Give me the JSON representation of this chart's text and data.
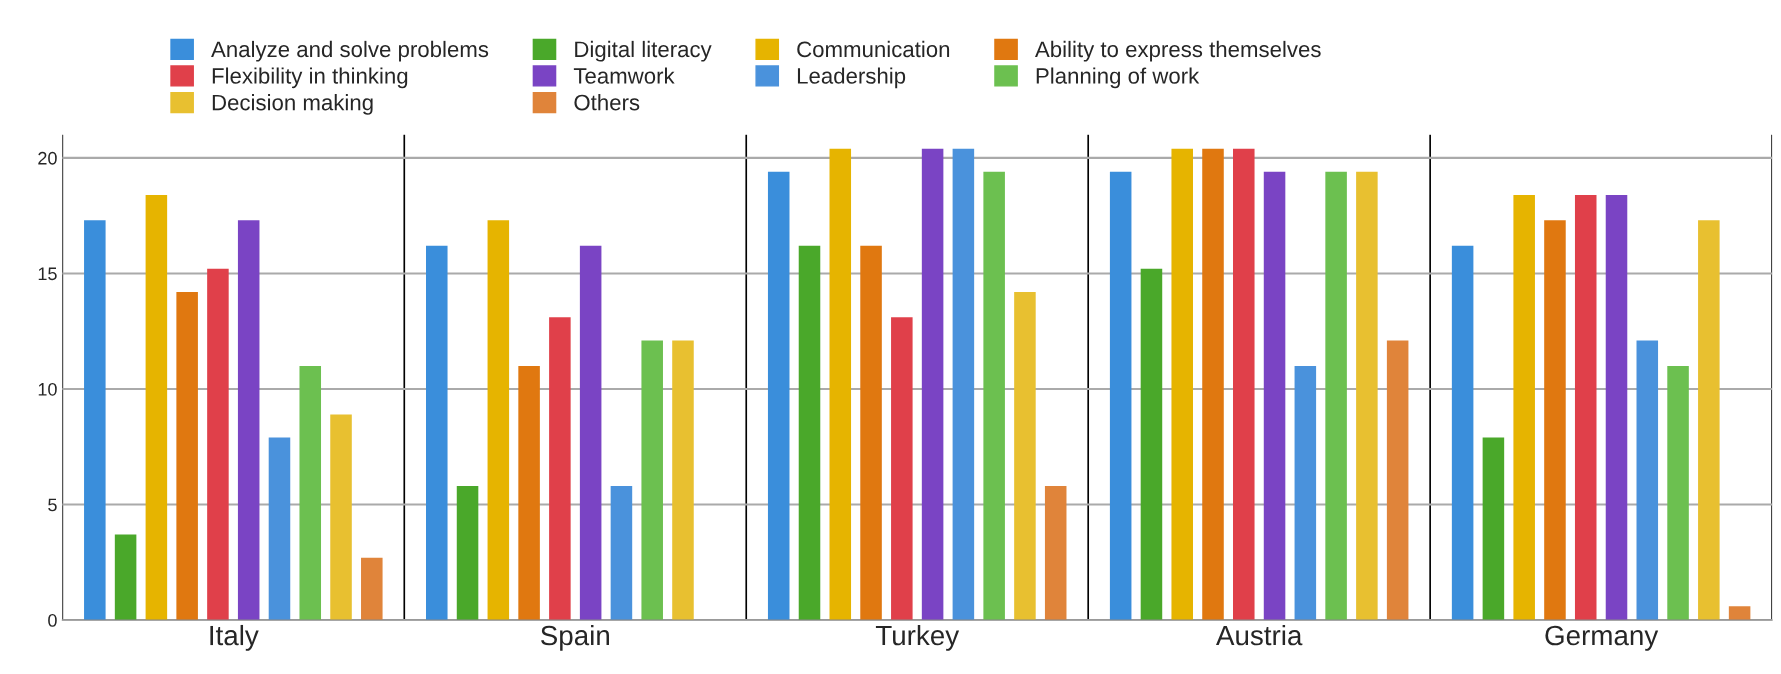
{
  "chart_data": {
    "type": "bar",
    "categories": [
      "Italy",
      "Spain",
      "Turkey",
      "Austria",
      "Germany"
    ],
    "series": [
      {
        "name": "Analyze and solve problems",
        "color": "#3a8edb",
        "values": [
          17.3,
          16.2,
          19.4,
          19.4,
          16.2
        ]
      },
      {
        "name": "Digital literacy",
        "color": "#4aa82a",
        "values": [
          3.7,
          5.8,
          16.2,
          15.2,
          7.9
        ]
      },
      {
        "name": "Communication",
        "color": "#e6b400",
        "values": [
          18.4,
          17.3,
          20.4,
          20.4,
          18.4
        ]
      },
      {
        "name": "Ability to express themselves",
        "color": "#e07810",
        "values": [
          14.2,
          11.0,
          16.2,
          20.4,
          17.3
        ]
      },
      {
        "name": "Flexibility in thinking",
        "color": "#e0404a",
        "values": [
          15.2,
          13.1,
          13.1,
          20.4,
          18.4
        ]
      },
      {
        "name": "Teamwork",
        "color": "#7a44c4",
        "values": [
          17.3,
          16.2,
          20.4,
          19.4,
          18.4
        ]
      },
      {
        "name": "Leadership",
        "color": "#4a92dc",
        "values": [
          7.9,
          5.8,
          20.4,
          11.0,
          12.1
        ]
      },
      {
        "name": "Planning of work",
        "color": "#6cc050",
        "values": [
          11.0,
          12.1,
          19.4,
          19.4,
          11.0
        ]
      },
      {
        "name": "Decision making",
        "color": "#e8c030",
        "values": [
          8.9,
          12.1,
          14.2,
          19.4,
          17.3
        ]
      },
      {
        "name": "Others",
        "color": "#e0843a",
        "values": [
          2.7,
          null,
          5.8,
          12.1,
          0.6
        ]
      }
    ],
    "ylim": [
      0,
      21
    ],
    "yticks": [
      0,
      5,
      10,
      15,
      20
    ],
    "grid": true,
    "legend": "top"
  }
}
